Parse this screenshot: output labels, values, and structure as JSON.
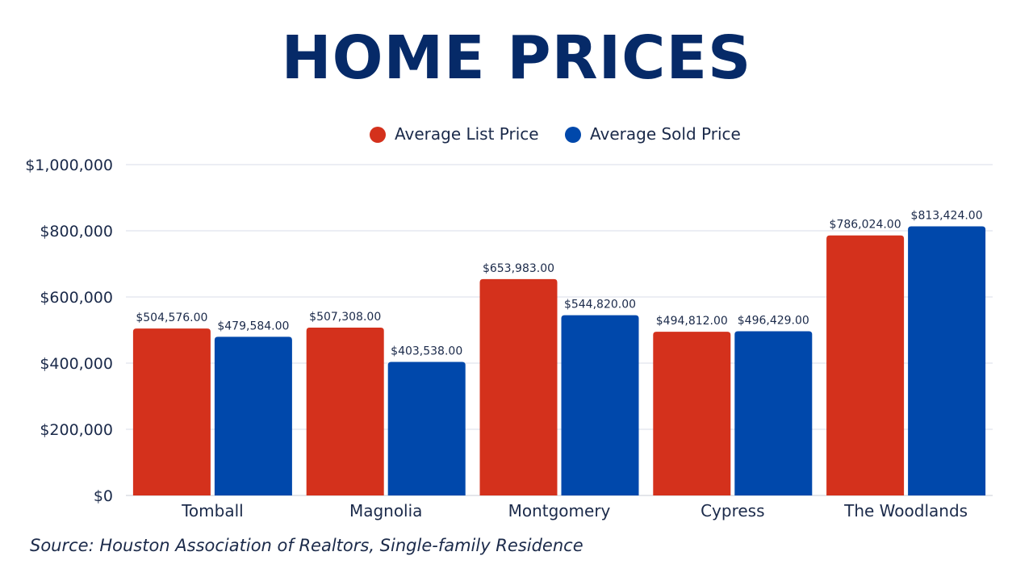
{
  "chart_data": {
    "type": "bar",
    "title": "HOME PRICES",
    "categories": [
      "Tomball",
      "Magnolia",
      "Montgomery",
      "Cypress",
      "The Woodlands"
    ],
    "series": [
      {
        "name": "Average List Price",
        "color": "#d4311c",
        "values": [
          504576,
          507308,
          653983,
          494812,
          786024
        ],
        "labels": [
          "$504,576.00",
          "$507,308.00",
          "$653,983.00",
          "$494,812.00",
          "$786,024.00"
        ]
      },
      {
        "name": "Average Sold Price",
        "color": "#0048ab",
        "values": [
          479584,
          403538,
          544820,
          496429,
          813424
        ],
        "labels": [
          "$479,584.00",
          "$403,538.00",
          "$544,820.00",
          "$496,429.00",
          "$813,424.00"
        ]
      }
    ],
    "ylim": [
      0,
      1000000
    ],
    "yticks": [
      0,
      200000,
      400000,
      600000,
      800000,
      1000000
    ],
    "ytick_labels": [
      "$0",
      "$200,000",
      "$400,000",
      "$600,000",
      "$800,000",
      "$1,000,000"
    ],
    "grid": true,
    "legend_position": "top-center"
  },
  "source": "Source: Houston Association of Realtors, Single-family Residence",
  "colors": {
    "title": "#062a68",
    "text": "#1b2a4a",
    "grid": "#d9dde8"
  }
}
